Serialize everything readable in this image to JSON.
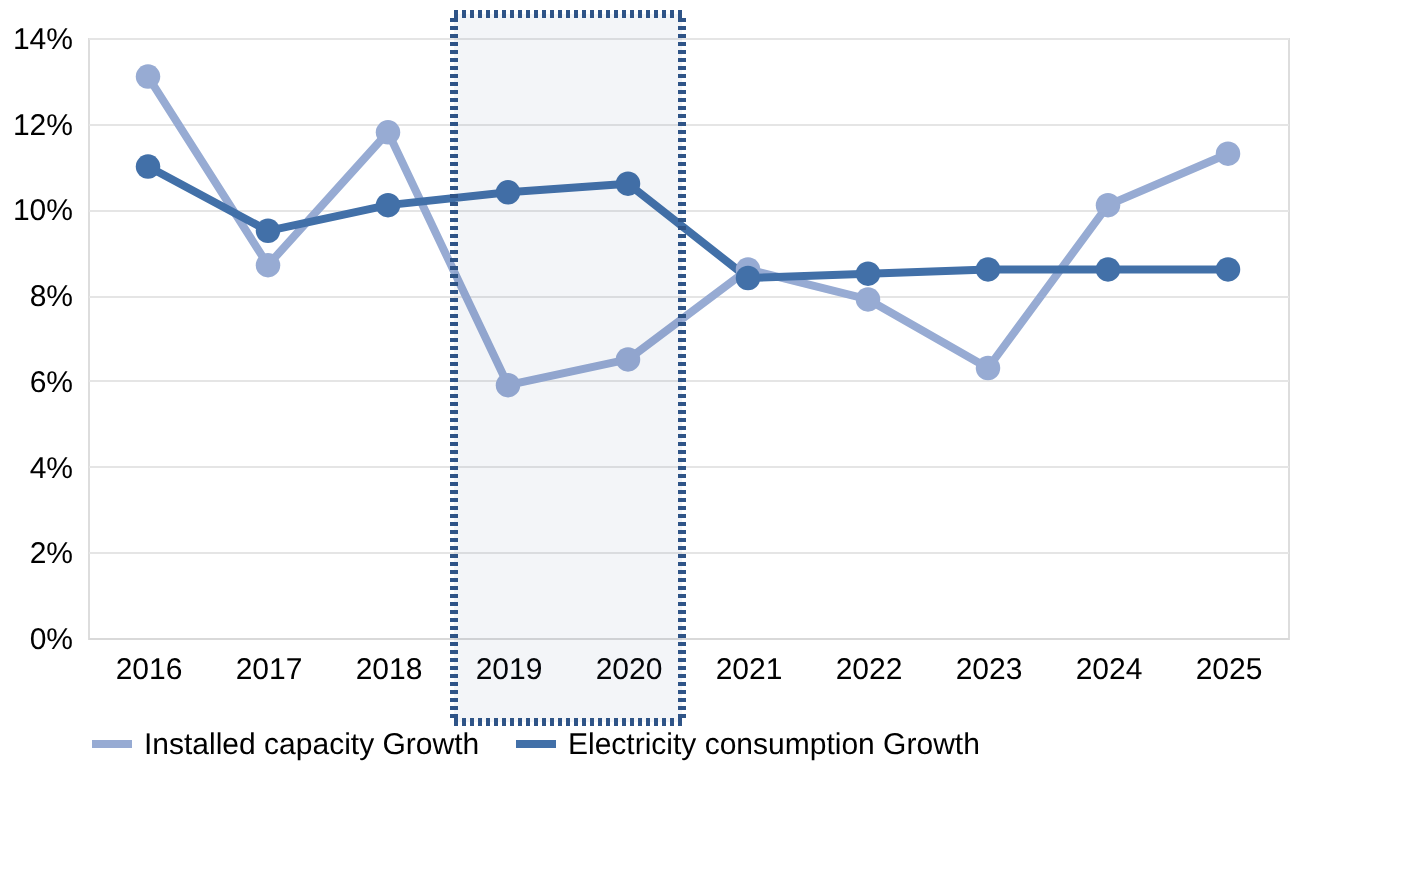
{
  "chart_data": {
    "type": "line",
    "categories": [
      "2016",
      "2017",
      "2018",
      "2019",
      "2020",
      "2021",
      "2022",
      "2023",
      "2024",
      "2025"
    ],
    "series": [
      {
        "name": "Installed capacity Growth",
        "color": "#97abd3",
        "values": [
          13.1,
          8.7,
          11.8,
          5.9,
          6.5,
          8.6,
          7.9,
          6.3,
          10.1,
          11.3
        ]
      },
      {
        "name": "Electricity consumption Growth",
        "color": "#4270a8",
        "values": [
          11.0,
          9.5,
          10.1,
          10.4,
          10.6,
          8.4,
          8.5,
          8.6,
          8.6,
          8.6
        ]
      }
    ],
    "ylim": [
      0,
      14
    ],
    "yticks": [
      {
        "value": 0,
        "label": "0%"
      },
      {
        "value": 2,
        "label": "2%"
      },
      {
        "value": 4,
        "label": "4%"
      },
      {
        "value": 6,
        "label": "6%"
      },
      {
        "value": 8,
        "label": "8%"
      },
      {
        "value": 10,
        "label": "10%"
      },
      {
        "value": 12,
        "label": "12%"
      },
      {
        "value": 14,
        "label": "14%"
      }
    ],
    "bands": [
      {
        "axis": "x",
        "from": "2019",
        "to": "2020",
        "color": "#2f5487"
      }
    ],
    "grid": "y",
    "legend": "bottom",
    "marker": "circle",
    "line_style": "solid"
  }
}
